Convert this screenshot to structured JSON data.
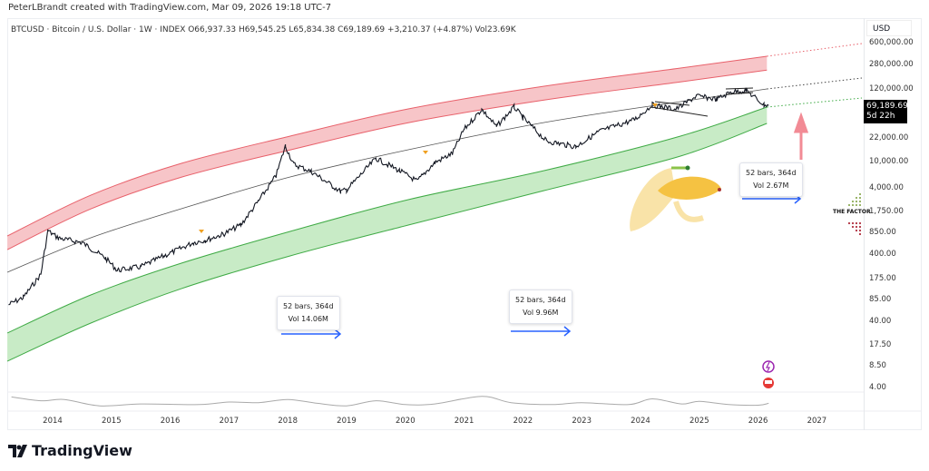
{
  "header": {
    "credit": "PeterLBrandt created with TradingView.com, Mar 09, 2026 19:18 UTC-7",
    "legend": "BTCUSD · Bitcoin / U.S. Dollar · 1W · INDEX  O66,937.33  H69,545.25  L65,834.38  C69,189.69  +3,210.37 (+4.87%)  Vol23.69K"
  },
  "price_axis": {
    "currency": "USD",
    "labels": [
      "600,000.00",
      "280,000.00",
      "120,000.00",
      "22,000.00",
      "10,000.00",
      "4,000.00",
      "1,750.00",
      "850.00",
      "400.00",
      "175.00",
      "85.00",
      "40.00",
      "17.50",
      "8.50",
      "4.00"
    ],
    "last_price": "69,189.69",
    "countdown": "5d 22h"
  },
  "annotations": [
    {
      "line1": "52 bars, 364d",
      "line2": "Vol 14.06M"
    },
    {
      "line1": "52 bars, 364d",
      "line2": "Vol 9.96M"
    },
    {
      "line1": "52 bars, 364d",
      "line2": "Vol 2.67M"
    }
  ],
  "watermark": "THE FACTOR",
  "footer": {
    "brand": "TradingView"
  },
  "colors": {
    "red_band": "#f7c5c8",
    "red_edge": "#e8606a",
    "green_band": "#c8ebc6",
    "green_edge": "#3faa45",
    "candles": "#131722",
    "arrow": "#2962ff",
    "up_arrow": "#f28b95",
    "last_price_bg": "#000000"
  },
  "chart_data": {
    "type": "line",
    "title": "BTCUSD · Bitcoin / U.S. Dollar · 1W · INDEX",
    "y_scale": "log",
    "ylim": [
      4,
      600000
    ],
    "xlim": [
      2013.23,
      2027.8
    ],
    "x_ticks": [
      "2014",
      "2015",
      "2016",
      "2017",
      "2018",
      "2019",
      "2020",
      "2021",
      "2022",
      "2023",
      "2024",
      "2025",
      "2026",
      "2027"
    ],
    "grid": false,
    "price": [
      [
        2013.25,
        70
      ],
      [
        2013.5,
        90
      ],
      [
        2013.8,
        200
      ],
      [
        2013.92,
        900
      ],
      [
        2014.1,
        700
      ],
      [
        2014.5,
        600
      ],
      [
        2014.9,
        350
      ],
      [
        2015.1,
        230
      ],
      [
        2015.5,
        260
      ],
      [
        2015.9,
        380
      ],
      [
        2016.4,
        600
      ],
      [
        2016.6,
        650
      ],
      [
        2016.9,
        800
      ],
      [
        2017.2,
        1100
      ],
      [
        2017.5,
        2500
      ],
      [
        2017.8,
        6000
      ],
      [
        2017.96,
        17000
      ],
      [
        2018.1,
        9000
      ],
      [
        2018.4,
        7000
      ],
      [
        2018.9,
        3500
      ],
      [
        2019.0,
        3700
      ],
      [
        2019.5,
        11000
      ],
      [
        2019.9,
        7200
      ],
      [
        2020.2,
        5000
      ],
      [
        2020.5,
        9500
      ],
      [
        2020.8,
        13000
      ],
      [
        2021.0,
        30000
      ],
      [
        2021.3,
        60000
      ],
      [
        2021.55,
        33000
      ],
      [
        2021.85,
        65000
      ],
      [
        2022.0,
        45000
      ],
      [
        2022.4,
        20000
      ],
      [
        2022.9,
        16500
      ],
      [
        2023.3,
        28000
      ],
      [
        2023.9,
        42000
      ],
      [
        2024.2,
        70000
      ],
      [
        2024.6,
        60000
      ],
      [
        2024.95,
        95000
      ],
      [
        2025.3,
        85000
      ],
      [
        2025.55,
        110000
      ],
      [
        2025.8,
        115000
      ],
      [
        2025.95,
        90000
      ],
      [
        2026.1,
        70000
      ],
      [
        2026.18,
        69189.69
      ]
    ],
    "band_x": [
      2013.23,
      2014.65,
      2016.19,
      2018.04,
      2020.05,
      2022.36,
      2024.68,
      2026.15
    ],
    "red_band_upper": [
      754,
      3090,
      9270,
      23770,
      60960,
      133400,
      250000,
      375900
    ],
    "red_band_lower": [
      470,
      1920,
      5750,
      14740,
      37800,
      82700,
      155000,
      233000
    ],
    "mid_line": [
      215,
      708,
      1930,
      5790,
      14830,
      38050,
      78300,
      121400
    ],
    "green_band_upper": [
      26.3,
      98.1,
      293.9,
      881,
      2644,
      7210,
      23770,
      64900
    ],
    "green_band_lower": [
      9.93,
      37.1,
      122,
      378,
      1099,
      3615,
      11920,
      36900
    ],
    "lower_pane": [
      [
        2013.3,
        0.9
      ],
      [
        2013.8,
        0.6
      ],
      [
        2014.2,
        0.7
      ],
      [
        2014.8,
        0.2
      ],
      [
        2015.5,
        0.35
      ],
      [
        2016.5,
        0.3
      ],
      [
        2017.0,
        0.5
      ],
      [
        2017.5,
        0.45
      ],
      [
        2018.0,
        0.7
      ],
      [
        2018.5,
        0.4
      ],
      [
        2019.0,
        0.2
      ],
      [
        2019.5,
        0.6
      ],
      [
        2020.0,
        0.3
      ],
      [
        2020.5,
        0.35
      ],
      [
        2021.3,
        0.95
      ],
      [
        2021.8,
        0.45
      ],
      [
        2022.5,
        0.3
      ],
      [
        2023.0,
        0.45
      ],
      [
        2023.8,
        0.3
      ],
      [
        2024.2,
        0.75
      ],
      [
        2024.7,
        0.35
      ],
      [
        2025.0,
        0.55
      ],
      [
        2025.5,
        0.3
      ],
      [
        2026.0,
        0.25
      ],
      [
        2026.18,
        0.4
      ]
    ]
  }
}
